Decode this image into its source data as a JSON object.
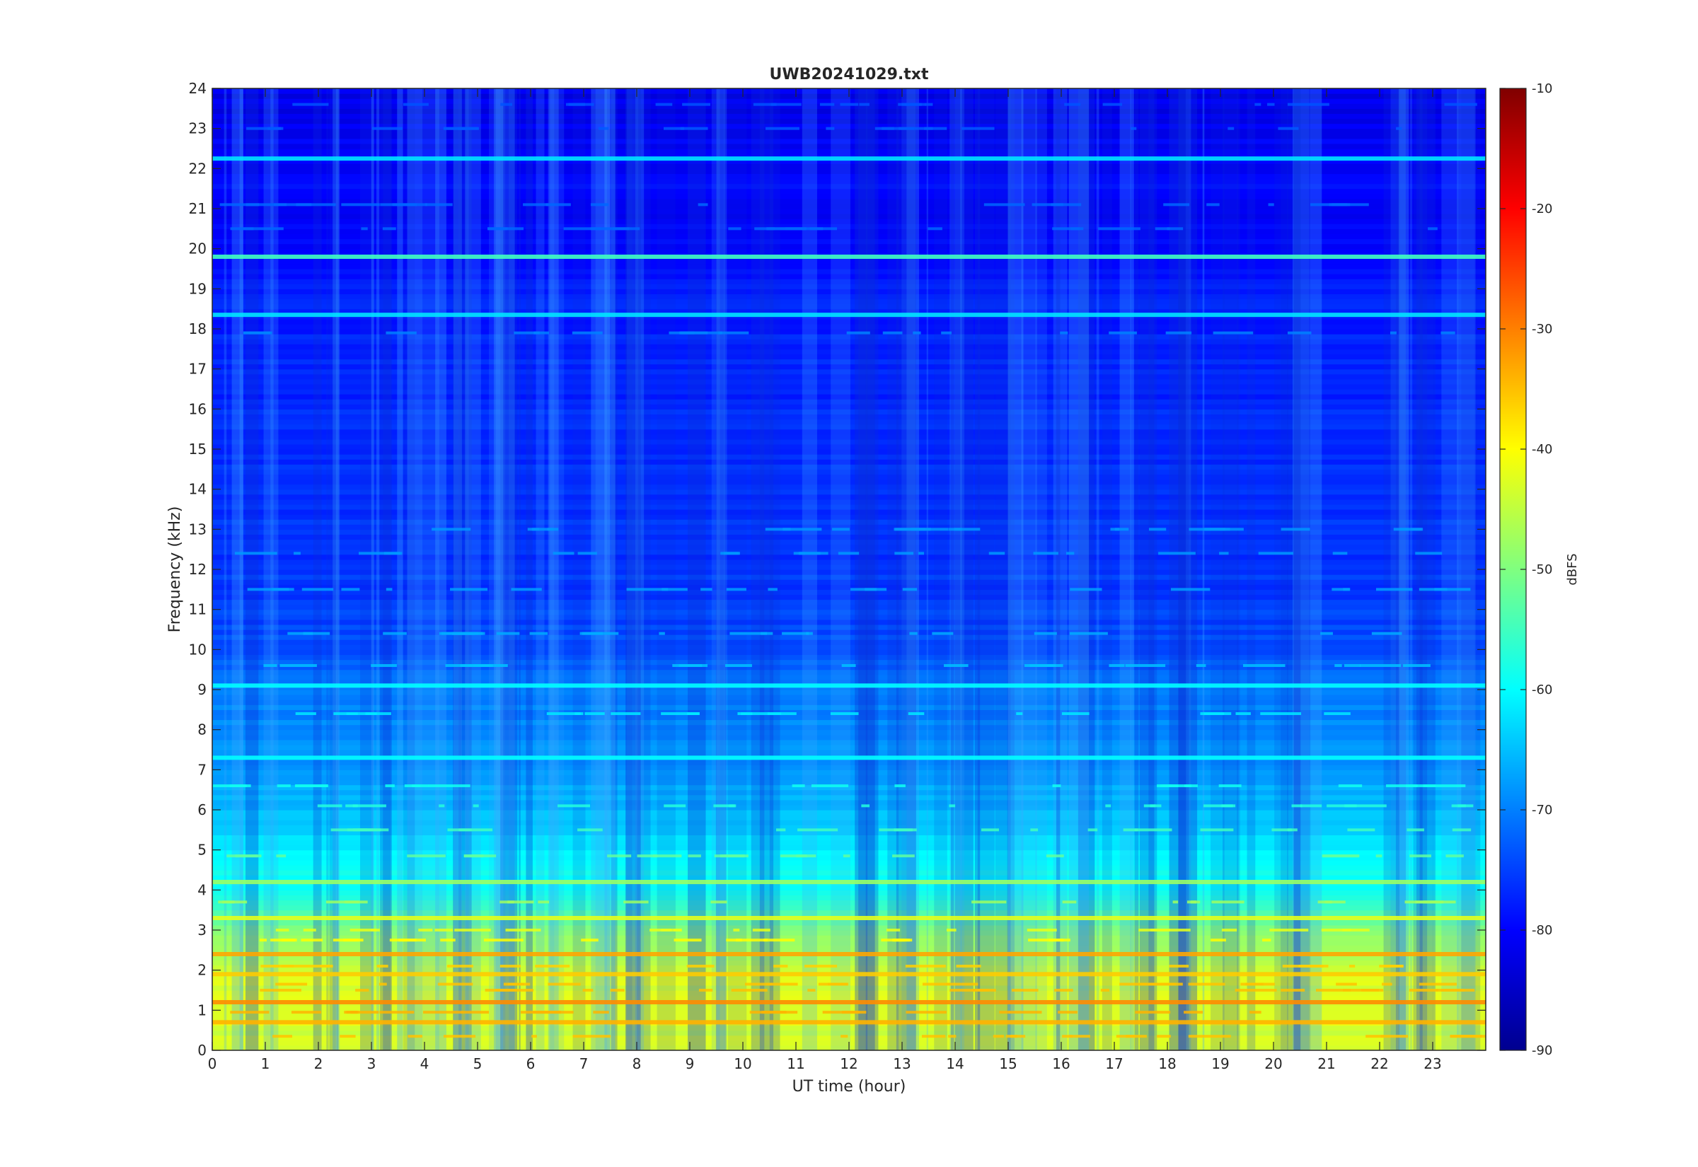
{
  "chart_data": {
    "type": "heatmap",
    "title": "UWB20241029.txt",
    "xlabel": "UT time (hour)",
    "ylabel": "Frequency (kHz)",
    "xlim": [
      0,
      24
    ],
    "ylim": [
      0,
      24
    ],
    "x_ticks": [
      0,
      1,
      2,
      3,
      4,
      5,
      6,
      7,
      8,
      9,
      10,
      11,
      12,
      13,
      14,
      15,
      16,
      17,
      18,
      19,
      20,
      21,
      22,
      23
    ],
    "y_ticks": [
      0,
      1,
      2,
      3,
      4,
      5,
      6,
      7,
      8,
      9,
      10,
      11,
      12,
      13,
      14,
      15,
      16,
      17,
      18,
      19,
      20,
      21,
      22,
      23,
      24
    ],
    "colorbar": {
      "label": "dBFS",
      "range": [
        -90,
        -10
      ],
      "ticks": [
        -90,
        -80,
        -70,
        -60,
        -50,
        -40,
        -30,
        -20,
        -10
      ],
      "colormap": "jet"
    },
    "background_level_dbfs_by_frequency": [
      [
        0,
        -44
      ],
      [
        1,
        -42
      ],
      [
        2,
        -44
      ],
      [
        2.5,
        -46
      ],
      [
        3,
        -50
      ],
      [
        3.5,
        -54
      ],
      [
        4,
        -58
      ],
      [
        5,
        -61
      ],
      [
        6,
        -65
      ],
      [
        7,
        -68
      ],
      [
        8,
        -69
      ],
      [
        9,
        -71
      ],
      [
        10,
        -74
      ],
      [
        12,
        -76
      ],
      [
        16,
        -77
      ],
      [
        19,
        -78
      ],
      [
        20,
        -80
      ],
      [
        22,
        -80
      ],
      [
        24,
        -82
      ]
    ],
    "horizontal_lines": [
      {
        "freq_khz": 0.7,
        "level_dbfs": -34,
        "from_hour": 0,
        "to_hour": 24
      },
      {
        "freq_khz": 1.2,
        "level_dbfs": -31,
        "from_hour": 0,
        "to_hour": 24
      },
      {
        "freq_khz": 1.9,
        "level_dbfs": -36,
        "from_hour": 0,
        "to_hour": 24
      },
      {
        "freq_khz": 2.4,
        "level_dbfs": -33,
        "from_hour": 0,
        "to_hour": 24
      },
      {
        "freq_khz": 3.3,
        "level_dbfs": -42,
        "from_hour": 0,
        "to_hour": 24
      },
      {
        "freq_khz": 4.2,
        "level_dbfs": -48,
        "from_hour": 0,
        "to_hour": 24
      },
      {
        "freq_khz": 7.3,
        "level_dbfs": -60,
        "from_hour": 0,
        "to_hour": 24
      },
      {
        "freq_khz": 9.1,
        "level_dbfs": -60,
        "from_hour": 0,
        "to_hour": 24
      },
      {
        "freq_khz": 18.35,
        "level_dbfs": -62,
        "from_hour": 0,
        "to_hour": 24
      },
      {
        "freq_khz": 19.8,
        "level_dbfs": -55,
        "from_hour": 0,
        "to_hour": 24
      },
      {
        "freq_khz": 22.25,
        "level_dbfs": -62,
        "from_hour": 0,
        "to_hour": 24
      }
    ],
    "colors": {
      "axes_text": "#262626",
      "axes_box": "#262626",
      "background": "#ffffff"
    }
  }
}
